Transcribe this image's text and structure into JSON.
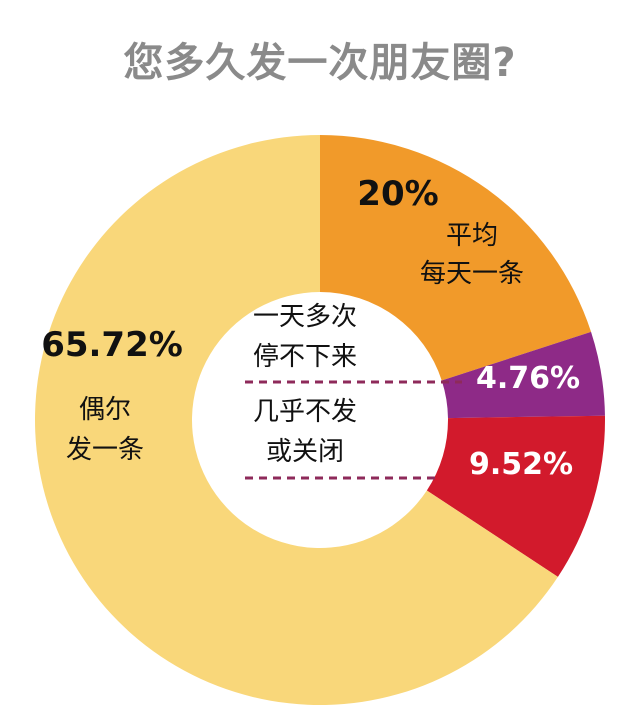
{
  "chart_data": {
    "type": "pie",
    "title": "您多久发一次朋友圈?",
    "slices": [
      {
        "percent_label": "20%",
        "value": 20,
        "label_lines": [
          "平均",
          "每天一条"
        ],
        "color": "#f19a2a"
      },
      {
        "percent_label": "4.76%",
        "value": 4.76,
        "label_lines": [],
        "color": "#8e2a87"
      },
      {
        "percent_label": "9.52%",
        "value": 9.52,
        "label_lines": [],
        "color": "#d21a2c"
      },
      {
        "percent_label": "65.72%",
        "value": 65.72,
        "label_lines": [
          "偶尔",
          "发一条"
        ],
        "color": "#f9d77a"
      }
    ],
    "center_labels": [
      {
        "lines": [
          "一天多次",
          "停不下来"
        ]
      },
      {
        "lines": [
          "几乎不发",
          "或关闭"
        ]
      }
    ],
    "colors": {
      "title": "#8a8a8a",
      "dashed_line": "#8e2a5a",
      "percent_text_dark": "#111111",
      "percent_text_light": "#ffffff"
    }
  }
}
